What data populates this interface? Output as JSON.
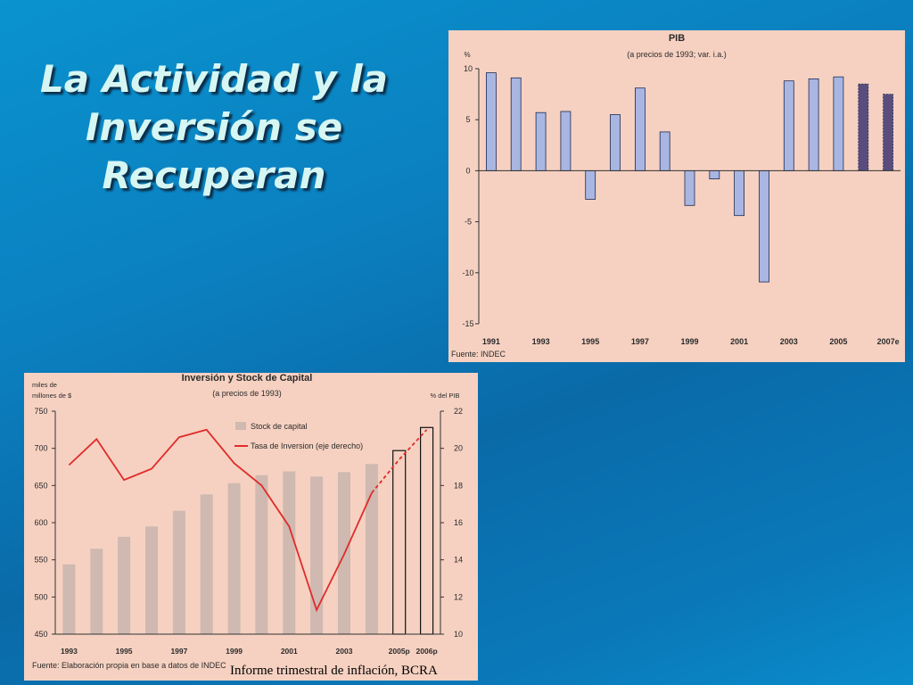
{
  "slide": {
    "title_lines": [
      "La Actividad y la",
      "Inversión se",
      "Recuperan"
    ],
    "caption": "Informe trimestral de inflación, BCRA",
    "colors": {
      "background": "#0a7fbf",
      "title": "#d6f6f3",
      "panel": "#f6d1c1",
      "bar": "#a9b6e2",
      "bar_projected": "#5a4d7e",
      "stock_bar": "#cfb9b0",
      "line": "#e02b2b"
    }
  },
  "chart_data": [
    {
      "type": "bar",
      "title": "PIB",
      "subtitle": "(a precios de 1993; var. i.a.)",
      "ylabel": "%",
      "ylim": [
        -15,
        10
      ],
      "yticks": [
        10,
        5,
        0,
        -5,
        -10,
        -15
      ],
      "categories": [
        "1991",
        "1992",
        "1993",
        "1994",
        "1995",
        "1996",
        "1997",
        "1998",
        "1999",
        "2000",
        "2001",
        "2002",
        "2003",
        "2004",
        "2005",
        "2006",
        "2007e"
      ],
      "values": [
        9.6,
        9.1,
        5.7,
        5.8,
        -2.8,
        5.5,
        8.1,
        3.8,
        -3.4,
        -0.8,
        -4.4,
        -10.9,
        8.8,
        9.0,
        9.2,
        8.5,
        7.5
      ],
      "projected_from_index": 15,
      "xtick_labels": [
        "1991",
        "1993",
        "1995",
        "1997",
        "1999",
        "2001",
        "2003",
        "2005",
        "2007e"
      ],
      "source": "Fuente: INDEC",
      "grid": false
    },
    {
      "type": "bar",
      "title": "Inversión y Stock de Capital",
      "subtitle": "(a precios de 1993)",
      "ylabel_left": "miles de millones de $",
      "ylabel_left_lines": [
        "miles de",
        "millones de $"
      ],
      "ylabel_right": "% del PIB",
      "ylim_left": [
        450,
        750
      ],
      "yticks_left": [
        750,
        700,
        650,
        600,
        550,
        500,
        450
      ],
      "ylim_right": [
        10,
        22
      ],
      "yticks_right": [
        22,
        20,
        18,
        16,
        14,
        12,
        10
      ],
      "categories": [
        "1993",
        "1994",
        "1995",
        "1996",
        "1997",
        "1998",
        "1999",
        "2000",
        "2001",
        "2002",
        "2003",
        "2004",
        "2005p",
        "2006p"
      ],
      "series": [
        {
          "name": "Stock de capital",
          "type": "bar",
          "axis": "left",
          "values": [
            544,
            565,
            581,
            595,
            616,
            638,
            653,
            664,
            669,
            662,
            668,
            679,
            697,
            728
          ],
          "projected_from_index": 12
        },
        {
          "name": "Tasa de Inversion (eje derecho)",
          "type": "line",
          "axis": "right",
          "values": [
            19.1,
            20.5,
            18.3,
            18.9,
            20.6,
            21.0,
            19.2,
            18.0,
            15.8,
            11.3,
            14.3,
            17.6,
            19.4,
            21.0
          ],
          "dashed_from_index": 11
        }
      ],
      "xtick_labels": [
        "1993",
        "1995",
        "1997",
        "1999",
        "2001",
        "2003",
        "2005p",
        "2006p"
      ],
      "legend_position": "top-left",
      "source": "Fuente: Elaboración propia en base a datos de INDEC",
      "grid": false
    }
  ]
}
